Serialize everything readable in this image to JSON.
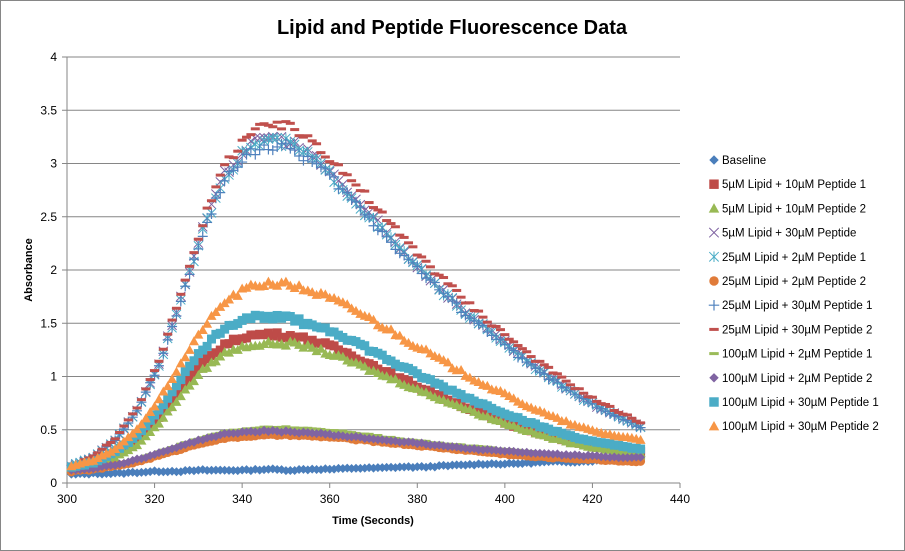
{
  "chart_data": {
    "type": "scatter",
    "title": "Lipid and Peptide Fluorescence Data",
    "xlabel": "Time (Seconds)",
    "ylabel": "Absorbance",
    "xlim": [
      300,
      440
    ],
    "ylim": [
      0,
      4
    ],
    "x_ticks": [
      "300",
      "320",
      "340",
      "360",
      "380",
      "400",
      "420",
      "440"
    ],
    "y_ticks": [
      "0",
      "0.5",
      "1",
      "1.5",
      "2",
      "2.5",
      "3",
      "3.5",
      "4"
    ],
    "grid": "horizontal major gridlines",
    "legend_position": "right",
    "x": [
      301,
      306,
      311,
      316,
      321,
      326,
      331,
      336,
      341,
      346,
      351,
      356,
      361,
      366,
      371,
      376,
      381,
      386,
      391,
      396,
      401,
      406,
      411,
      416,
      421,
      426,
      431
    ],
    "series": [
      {
        "name": "Baseline",
        "marker": "diamond",
        "color": "#4a7ebb",
        "values": [
          0.08,
          0.09,
          0.09,
          0.1,
          0.11,
          0.11,
          0.12,
          0.12,
          0.12,
          0.13,
          0.12,
          0.13,
          0.13,
          0.14,
          0.14,
          0.15,
          0.15,
          0.16,
          0.17,
          0.18,
          0.18,
          0.19,
          0.2,
          0.2,
          0.21,
          0.22,
          0.22
        ]
      },
      {
        "name": "5µM Lipid + 10µM Peptide 1",
        "marker": "square",
        "color": "#be4b48",
        "values": [
          0.15,
          0.19,
          0.28,
          0.42,
          0.62,
          0.88,
          1.12,
          1.3,
          1.38,
          1.4,
          1.38,
          1.34,
          1.27,
          1.18,
          1.08,
          0.98,
          0.89,
          0.8,
          0.71,
          0.63,
          0.55,
          0.49,
          0.43,
          0.38,
          0.34,
          0.31,
          0.29
        ]
      },
      {
        "name": "5µM Lipid + 10µM Peptide 2",
        "marker": "triangle",
        "color": "#98b954",
        "values": [
          0.14,
          0.17,
          0.24,
          0.36,
          0.56,
          0.82,
          1.06,
          1.22,
          1.29,
          1.31,
          1.31,
          1.27,
          1.2,
          1.12,
          1.03,
          0.95,
          0.86,
          0.78,
          0.7,
          0.62,
          0.55,
          0.48,
          0.42,
          0.37,
          0.33,
          0.3,
          0.28
        ]
      },
      {
        "name": "5µM Lipid + 30µM Peptide",
        "marker": "x",
        "color": "#7d60a0",
        "values": [
          0.16,
          0.24,
          0.4,
          0.68,
          1.12,
          1.74,
          2.38,
          2.9,
          3.15,
          3.26,
          3.2,
          3.07,
          2.88,
          2.66,
          2.43,
          2.21,
          2.0,
          1.8,
          1.61,
          1.45,
          1.28,
          1.12,
          0.98,
          0.84,
          0.72,
          0.63,
          0.53
        ]
      },
      {
        "name": "25µM Lipid + 2µM Peptide 1",
        "marker": "asterisk",
        "color": "#4aacc6",
        "values": [
          0.16,
          0.24,
          0.4,
          0.68,
          1.1,
          1.72,
          2.36,
          2.88,
          3.13,
          3.22,
          3.18,
          3.05,
          2.86,
          2.64,
          2.41,
          2.2,
          1.99,
          1.79,
          1.6,
          1.44,
          1.27,
          1.11,
          0.97,
          0.83,
          0.72,
          0.62,
          0.53
        ]
      },
      {
        "name": "25µM Lipid + 2µM Peptide 2",
        "marker": "circle",
        "color": "#e07b39",
        "values": [
          0.11,
          0.13,
          0.16,
          0.2,
          0.26,
          0.32,
          0.38,
          0.42,
          0.44,
          0.45,
          0.45,
          0.44,
          0.43,
          0.41,
          0.39,
          0.37,
          0.35,
          0.33,
          0.31,
          0.29,
          0.27,
          0.25,
          0.24,
          0.23,
          0.22,
          0.21,
          0.2
        ]
      },
      {
        "name": "25µM Lipid + 30µM Peptide 1",
        "marker": "plus",
        "color": "#4f81bd",
        "values": [
          0.16,
          0.24,
          0.4,
          0.68,
          1.1,
          1.7,
          2.34,
          2.84,
          3.1,
          3.16,
          3.14,
          3.02,
          2.84,
          2.62,
          2.4,
          2.18,
          1.98,
          1.78,
          1.59,
          1.43,
          1.26,
          1.1,
          0.96,
          0.83,
          0.71,
          0.62,
          0.52
        ]
      },
      {
        "name": "25µM Lipid + 30µM Peptide 2",
        "marker": "dash",
        "color": "#c0504d",
        "values": [
          0.17,
          0.25,
          0.42,
          0.7,
          1.14,
          1.78,
          2.44,
          2.98,
          3.26,
          3.36,
          3.34,
          3.22,
          3.02,
          2.8,
          2.56,
          2.33,
          2.12,
          1.91,
          1.71,
          1.53,
          1.36,
          1.19,
          1.04,
          0.9,
          0.77,
          0.67,
          0.57
        ]
      },
      {
        "name": "100µM Lipid + 2µM Peptide 1",
        "marker": "dash",
        "color": "#9bbb59",
        "values": [
          0.12,
          0.14,
          0.17,
          0.22,
          0.29,
          0.36,
          0.43,
          0.48,
          0.51,
          0.52,
          0.52,
          0.51,
          0.49,
          0.47,
          0.44,
          0.41,
          0.39,
          0.37,
          0.35,
          0.33,
          0.31,
          0.29,
          0.27,
          0.26,
          0.25,
          0.24,
          0.23
        ]
      },
      {
        "name": "100µM Lipid + 2µM Peptide 2",
        "marker": "diamond",
        "color": "#8064a2",
        "values": [
          0.12,
          0.14,
          0.17,
          0.22,
          0.28,
          0.35,
          0.41,
          0.46,
          0.48,
          0.49,
          0.48,
          0.47,
          0.45,
          0.43,
          0.41,
          0.39,
          0.37,
          0.35,
          0.33,
          0.31,
          0.3,
          0.28,
          0.27,
          0.26,
          0.25,
          0.24,
          0.24
        ]
      },
      {
        "name": "100µM Lipid + 30µM Peptide 1",
        "marker": "square",
        "color": "#4bacc6",
        "values": [
          0.15,
          0.19,
          0.29,
          0.45,
          0.68,
          0.98,
          1.26,
          1.46,
          1.55,
          1.57,
          1.54,
          1.49,
          1.42,
          1.32,
          1.21,
          1.1,
          1.0,
          0.9,
          0.81,
          0.72,
          0.64,
          0.56,
          0.49,
          0.43,
          0.38,
          0.35,
          0.32
        ]
      },
      {
        "name": "100µM Lipid + 30µM Peptide 2",
        "marker": "triangle",
        "color": "#f79646",
        "values": [
          0.16,
          0.21,
          0.32,
          0.5,
          0.78,
          1.12,
          1.45,
          1.7,
          1.83,
          1.88,
          1.86,
          1.8,
          1.72,
          1.62,
          1.5,
          1.38,
          1.26,
          1.14,
          1.02,
          0.91,
          0.81,
          0.71,
          0.62,
          0.54,
          0.48,
          0.44,
          0.41
        ]
      }
    ]
  }
}
